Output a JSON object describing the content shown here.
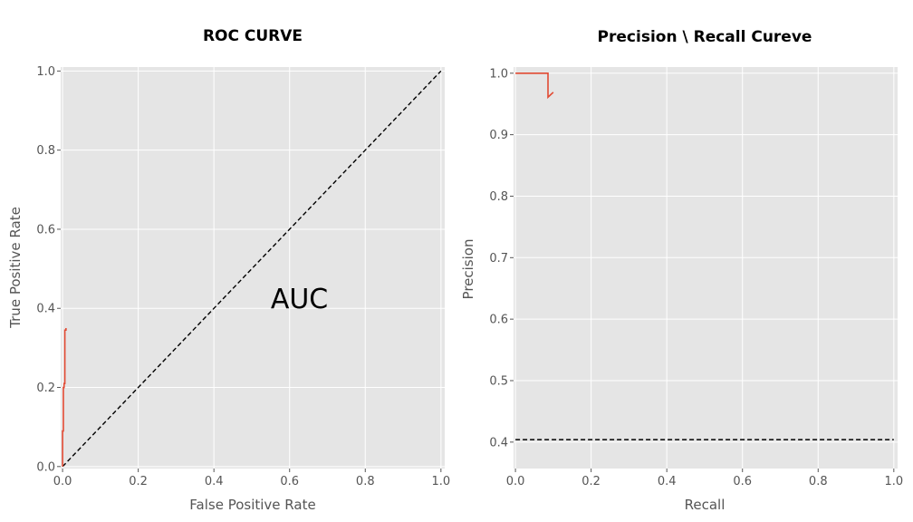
{
  "colors": {
    "plot_background": "#e5e5e5",
    "grid": "#ffffff",
    "series": "#e24a33",
    "reference_line": "#000000",
    "tick_mark": "#555555"
  },
  "chart_data": [
    {
      "type": "line",
      "title": "ROC CURVE",
      "xlabel": "False Positive Rate",
      "ylabel": "True Positive Rate",
      "xlim": [
        -0.005,
        1.01
      ],
      "ylim": [
        -0.005,
        1.01
      ],
      "xticks": [
        0.0,
        0.2,
        0.4,
        0.6,
        0.8,
        1.0
      ],
      "yticks": [
        0.0,
        0.2,
        0.4,
        0.6,
        0.8,
        1.0
      ],
      "tick_labels": [
        "0.0",
        "0.2",
        "0.4",
        "0.6",
        "0.8",
        "1.0"
      ],
      "grid": true,
      "series": [
        {
          "x": [
            0.0,
            0.0,
            0.002,
            0.002,
            0.004,
            0.004,
            0.006,
            0.006,
            0.009,
            0.009
          ],
          "y": [
            0.0,
            0.09,
            0.09,
            0.2,
            0.2,
            0.21,
            0.21,
            0.345,
            0.345,
            0.35
          ]
        }
      ],
      "reference_line": {
        "x": [
          0.0,
          1.0
        ],
        "y": [
          0.0,
          1.0
        ]
      },
      "annotation": {
        "text": "AUC",
        "x": 0.55,
        "y": 0.4
      }
    },
    {
      "type": "line",
      "title": "Precision \\ Recall Cureve",
      "xlabel": "Recall",
      "ylabel": "Precision",
      "xlim": [
        -0.005,
        1.01
      ],
      "ylim": [
        0.357,
        1.01
      ],
      "xticks": [
        0.0,
        0.2,
        0.4,
        0.6,
        0.8,
        1.0
      ],
      "yticks": [
        0.4,
        0.5,
        0.6,
        0.7,
        0.8,
        0.9,
        1.0
      ],
      "xtick_labels": [
        "0.0",
        "0.2",
        "0.4",
        "0.6",
        "0.8",
        "1.0"
      ],
      "ytick_labels": [
        "0.4",
        "0.5",
        "0.6",
        "0.7",
        "0.8",
        "0.9",
        "1.0"
      ],
      "grid": true,
      "series": [
        {
          "x": [
            0.0,
            0.086,
            0.086,
            0.1
          ],
          "y": [
            1.0,
            1.0,
            0.961,
            0.969
          ]
        }
      ],
      "reference_line": {
        "x": [
          0.0,
          1.0
        ],
        "y": [
          0.404,
          0.404
        ]
      }
    }
  ]
}
